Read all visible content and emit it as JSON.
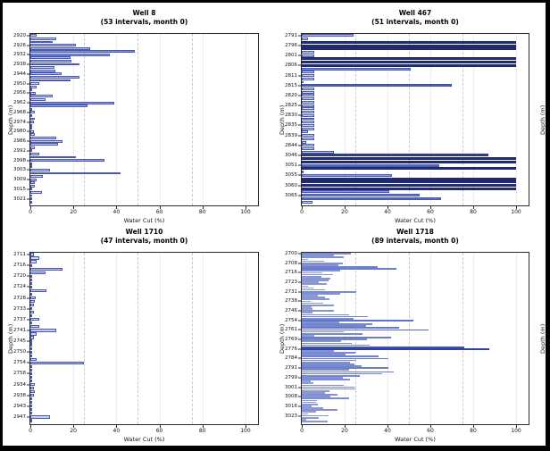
{
  "figure": {
    "xlabel": "Water Cut (%)",
    "ylabel": "Depth (m)",
    "xlim": [
      0,
      105
    ],
    "xticks": [
      0,
      20,
      40,
      60,
      80,
      100
    ],
    "grid_solid": [
      20,
      40,
      60,
      80,
      100
    ],
    "grid_dashed": [
      25,
      50,
      75
    ],
    "grid_on": true,
    "legend": "none",
    "cropped_right_axis_label": "Depth (m)",
    "colors": {
      "bar_scale_low": "#d6def6",
      "bar_scale_mid": "#7490d8",
      "bar_scale_high": "#232e7d",
      "bar_edge": "#4a58b4",
      "grid_solid": "#ececec",
      "grid_dashed": "#c9c9c9",
      "axis": "#2b2b2b",
      "frame": "#000000"
    }
  },
  "chart_data": [
    {
      "type": "bar",
      "orientation": "horizontal",
      "title": "Well 8",
      "subtitle": "(53 intervals, month 0)",
      "intervals": 53,
      "month": 0,
      "xlabel": "Water Cut (%)",
      "ylabel": "Depth (m)",
      "xlim": [
        0,
        105
      ],
      "label_step": 3,
      "depth_labels": [
        "2920",
        "2926",
        "2932",
        "2938",
        "2944",
        "2950",
        "2956",
        "2962",
        "2968",
        "2974",
        "2980",
        "2986",
        "2992",
        "2998",
        "3003",
        "3009",
        "3015",
        "3021"
      ],
      "values": [
        3,
        12,
        10.5,
        21,
        28,
        48.5,
        37,
        18.5,
        19,
        23,
        11,
        11.5,
        14.5,
        23,
        18.5,
        4,
        3,
        0.5,
        2.5,
        10.5,
        7,
        39,
        26.5,
        1,
        2,
        1,
        2,
        1.5,
        1,
        1,
        1.5,
        2,
        12,
        15,
        13,
        2,
        1,
        4,
        21,
        34.5,
        1,
        1,
        9,
        42,
        6,
        3,
        2,
        2,
        1,
        5.5,
        1,
        1,
        0.5
      ]
    },
    {
      "type": "bar",
      "orientation": "horizontal",
      "title": "Well 467",
      "subtitle": "(51 intervals, month 0)",
      "intervals": 51,
      "month": 0,
      "xlabel": "Water Cut (%)",
      "ylabel": "Depth (m)",
      "xlim": [
        0,
        105
      ],
      "label_step": 3,
      "depth_labels": [
        "2791",
        "2796",
        "2801",
        "2806",
        "2811",
        "2815",
        "2820",
        "2825",
        "2830",
        "2835",
        "2839",
        "2844",
        "3046",
        "3051",
        "3055",
        "3060",
        "3065"
      ],
      "values": [
        24,
        3,
        100,
        100,
        100,
        6,
        6,
        100,
        100,
        100,
        51,
        6,
        6,
        6,
        1,
        70,
        6,
        6,
        6,
        6,
        6,
        6,
        6,
        6,
        6,
        6,
        6,
        6,
        6,
        3,
        6,
        6,
        2,
        6,
        6,
        15,
        87,
        100,
        100,
        64,
        100,
        1,
        42,
        100,
        100,
        100,
        100,
        41,
        55,
        65,
        5
      ]
    },
    {
      "type": "bar",
      "orientation": "horizontal",
      "title": "Well 1710",
      "subtitle": "(47 intervals, month 0)",
      "intervals": 47,
      "month": 0,
      "xlabel": "Water Cut (%)",
      "ylabel": "Depth (m)",
      "xlim": [
        0,
        105
      ],
      "label_step": 3,
      "depth_labels": [
        "2711",
        "2716",
        "2720",
        "2724",
        "2728",
        "2733",
        "2737",
        "2741",
        "2745",
        "2750",
        "2754",
        "2758",
        "2934",
        "2938",
        "2943",
        "2947"
      ],
      "values": [
        1.5,
        4,
        3,
        0.5,
        15,
        7,
        1,
        0.5,
        1,
        0.5,
        7.5,
        1,
        2.5,
        2,
        1.5,
        1,
        1.5,
        1,
        4,
        0.5,
        4,
        12,
        3,
        1.5,
        1,
        1,
        0.5,
        0.5,
        1,
        3,
        25,
        0.5,
        1,
        1,
        0.5,
        1,
        2,
        1.5,
        2,
        1.5,
        1,
        0.5,
        1,
        0.5,
        0.5,
        9,
        1
      ]
    },
    {
      "type": "bar",
      "orientation": "horizontal",
      "title": "Well 1718",
      "subtitle": "(89 intervals, month 0)",
      "intervals": 89,
      "month": 0,
      "xlabel": "Water Cut (%)",
      "ylabel": "Depth (m)",
      "xlim": [
        0,
        105
      ],
      "label_step": 5,
      "depth_labels": [
        "2700",
        "2708",
        "2716",
        "2723",
        "2731",
        "2738",
        "2746",
        "2754",
        "2761",
        "2769",
        "2776",
        "2784",
        "2791",
        "2799",
        "3001",
        "3008",
        "3016",
        "3023"
      ],
      "values": [
        23,
        15,
        19.5,
        3,
        10.5,
        19,
        17,
        35.5,
        44,
        18,
        9.5,
        14.5,
        9,
        13.5,
        12.5,
        8,
        11.5,
        3,
        5.5,
        11,
        25.5,
        18,
        7.5,
        11,
        13,
        4,
        10,
        15,
        4.5,
        5,
        15,
        5,
        22,
        31,
        24,
        52,
        17.5,
        33,
        30,
        45.5,
        59,
        19.5,
        28.5,
        6,
        41.5,
        30.5,
        18.5,
        23.5,
        31.5,
        76,
        87.5,
        15,
        25,
        20.5,
        36,
        40.5,
        25.5,
        22.5,
        24.5,
        28,
        40.5,
        22,
        43,
        37.5,
        27,
        19,
        22.5,
        4,
        5.5,
        19.5,
        24.5,
        25,
        13,
        11,
        16.5,
        13.5,
        22,
        7,
        6.5,
        7.5,
        4.5,
        10,
        16.5,
        6.5,
        3,
        12.5,
        8,
        2,
        12
      ]
    }
  ]
}
